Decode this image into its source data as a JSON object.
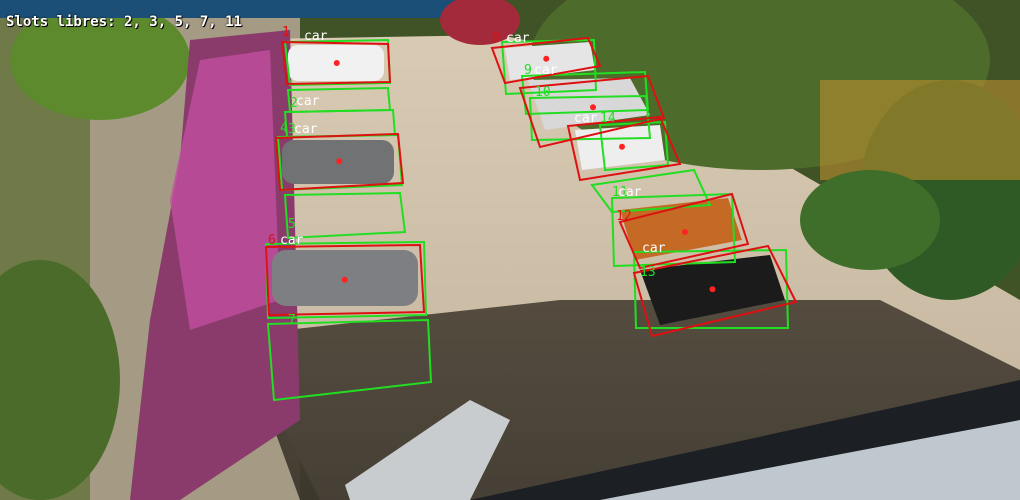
{
  "hud": {
    "free_slots_text": "Slots libres: 2, 3, 5, 7, 11"
  },
  "colors": {
    "slot_box": "#22dd22",
    "car_box": "#dd1111",
    "center_dot": "#ff2222",
    "label_text": "#ffffff"
  },
  "parking": {
    "slot_numbers": [
      "1",
      "2",
      "3",
      "4",
      "5",
      "6",
      "7",
      "8",
      "9",
      "10",
      "11",
      "12",
      "13",
      "14"
    ],
    "car_labels": [
      "car",
      "car",
      "car",
      "car",
      "car",
      "car",
      "car",
      "car",
      "car"
    ],
    "free_slots": [
      2,
      3,
      5,
      7,
      11
    ]
  }
}
